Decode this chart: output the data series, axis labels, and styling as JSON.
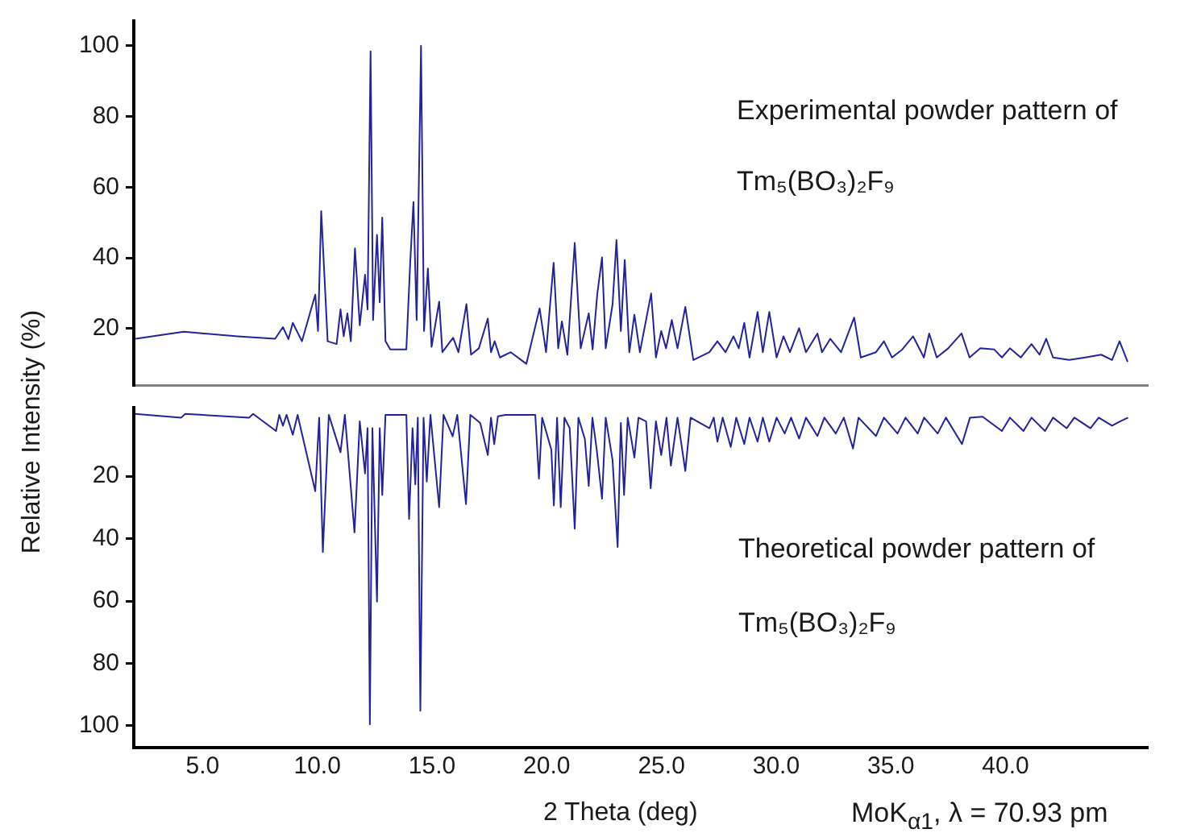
{
  "chart_data": [
    {
      "type": "line",
      "ylabel": "Relative Intensity (%)",
      "annotations": [
        "Experimental powder pattern of",
        "Tm₅(BO₃)₂F₉"
      ],
      "x": [
        2.08,
        4.18,
        6.52,
        8.16,
        8.5,
        8.74,
        8.93,
        9.33,
        9.91,
        10.03,
        10.17,
        10.45,
        10.84,
        11.01,
        11.15,
        11.31,
        11.46,
        11.64,
        11.85,
        12.08,
        12.19,
        12.32,
        12.43,
        12.6,
        12.72,
        12.83,
        12.97,
        13.18,
        13.88,
        14.05,
        14.19,
        14.33,
        14.52,
        14.65,
        14.82,
        14.98,
        15.31,
        15.45,
        15.92,
        16.15,
        16.5,
        16.7,
        17.04,
        17.43,
        17.57,
        17.73,
        17.96,
        18.43,
        19.11,
        19.69,
        19.97,
        20.3,
        20.5,
        20.66,
        20.9,
        21.22,
        21.48,
        21.83,
        22.0,
        22.2,
        22.41,
        22.57,
        22.87,
        23.04,
        23.23,
        23.4,
        23.6,
        23.82,
        24.06,
        24.55,
        24.76,
        24.99,
        25.2,
        25.45,
        25.7,
        26.04,
        26.39,
        27.09,
        27.44,
        27.79,
        28.14,
        28.37,
        28.61,
        28.84,
        29.19,
        29.42,
        29.7,
        30.02,
        30.32,
        30.6,
        31.0,
        31.3,
        31.8,
        32.0,
        32.36,
        32.83,
        33.4,
        33.69,
        34.35,
        34.7,
        35.05,
        35.5,
        35.97,
        36.44,
        36.67,
        37.0,
        37.5,
        38.08,
        38.43,
        38.9,
        39.5,
        39.84,
        40.19,
        40.66,
        41.13,
        41.48,
        41.77,
        42.07,
        42.77,
        43.47,
        44.17,
        44.64,
        44.97,
        45.32
      ],
      "series": [
        {
          "color": "#23239a",
          "values": [
            17.1,
            19.1,
            17.8,
            17.1,
            20.4,
            17.0,
            21.6,
            16.4,
            29.6,
            19.3,
            53.2,
            16.4,
            15.6,
            25.4,
            17.8,
            24.3,
            16.4,
            42.7,
            20.9,
            35.2,
            25.4,
            98.4,
            22.4,
            46.5,
            27.4,
            51.4,
            16.4,
            14.1,
            14.1,
            38.9,
            55.8,
            22.4,
            100,
            19.3,
            37.0,
            14.8,
            27.6,
            13.3,
            17.4,
            13.3,
            26.9,
            12.6,
            14.4,
            22.8,
            13.3,
            16.4,
            11.8,
            13.3,
            10.0,
            25.7,
            13.3,
            38.6,
            14.4,
            22.0,
            12.6,
            44.2,
            14.4,
            24.3,
            14.1,
            29.6,
            40.1,
            14.4,
            26.9,
            45.0,
            19.3,
            39.4,
            13.3,
            23.9,
            13.3,
            29.9,
            11.8,
            19.3,
            14.4,
            22.4,
            14.4,
            26.1,
            11.1,
            13.3,
            16.4,
            13.3,
            17.8,
            14.4,
            21.6,
            11.8,
            24.7,
            13.3,
            24.7,
            11.8,
            17.8,
            13.3,
            20.1,
            13.3,
            18.6,
            13.3,
            17.1,
            13.3,
            23.1,
            11.8,
            13.3,
            16.4,
            11.8,
            14.1,
            17.8,
            11.8,
            18.6,
            11.8,
            14.4,
            18.6,
            11.8,
            14.4,
            14.1,
            11.8,
            14.4,
            11.8,
            15.6,
            12.6,
            17.1,
            11.8,
            11.1,
            11.8,
            12.6,
            11.1,
            16.4,
            10.6
          ]
        }
      ],
      "xlim": [
        2,
        46.2
      ],
      "ylim": [
        4,
        107
      ],
      "yticks": [
        20,
        40,
        60,
        80,
        100
      ],
      "tick_labels": "y",
      "grid": false,
      "legend": false,
      "marker": "none",
      "line_style": "solid"
    },
    {
      "type": "line",
      "xlabel": "2 Theta (deg)",
      "annotations": [
        "Theoretical powder pattern of",
        "Tm₅(BO₃)₂F₉",
        "MoK$_{α1}$, λ = 70.93 pm"
      ],
      "x": [
        2.05,
        4.07,
        4.24,
        7.03,
        7.2,
        8.2,
        8.34,
        8.5,
        8.66,
        8.93,
        9.14,
        9.91,
        10.08,
        10.24,
        10.5,
        11.01,
        11.2,
        11.62,
        11.85,
        12.08,
        12.19,
        12.29,
        12.4,
        12.6,
        12.72,
        12.83,
        12.97,
        13.88,
        14.0,
        14.15,
        14.27,
        14.38,
        14.49,
        14.63,
        14.77,
        14.93,
        15.31,
        15.5,
        15.9,
        16.1,
        16.48,
        16.67,
        17.1,
        17.43,
        17.57,
        17.71,
        17.87,
        18.2,
        19.5,
        19.66,
        19.8,
        20.2,
        20.31,
        20.45,
        20.61,
        20.77,
        21.0,
        21.22,
        21.38,
        21.66,
        21.83,
        21.99,
        22.18,
        22.41,
        22.57,
        22.87,
        23.09,
        23.23,
        23.37,
        23.53,
        23.82,
        24.0,
        24.33,
        24.53,
        24.76,
        24.99,
        25.22,
        25.41,
        25.7,
        26.04,
        26.27,
        27.09,
        27.28,
        27.44,
        27.67,
        28.02,
        28.26,
        28.61,
        28.84,
        29.19,
        29.42,
        29.7,
        30.02,
        30.37,
        30.65,
        31.0,
        31.3,
        31.8,
        32.1,
        32.6,
        32.95,
        33.35,
        33.59,
        34.35,
        34.7,
        35.29,
        35.64,
        36.17,
        36.45,
        37.04,
        37.4,
        38.1,
        38.45,
        39.0,
        39.84,
        40.19,
        40.78,
        41.13,
        41.72,
        42.07,
        42.66,
        43.0,
        43.7,
        44.06,
        44.64,
        44.99,
        45.34
      ],
      "series": [
        {
          "color": "#23239a",
          "values": [
            0,
            1.2,
            0,
            1.2,
            0,
            5.5,
            0.3,
            3.8,
            0.3,
            6.7,
            0.3,
            24.8,
            1.2,
            44.3,
            0.3,
            12.3,
            0.3,
            38.0,
            2.4,
            19.1,
            4.6,
            99.5,
            4.6,
            60.2,
            4.6,
            26.0,
            0.3,
            0.3,
            33.7,
            4.6,
            22.6,
            1.2,
            95.2,
            1.2,
            21.7,
            0.3,
            29.9,
            0.3,
            7.2,
            0.3,
            28.9,
            0.3,
            2.9,
            13.2,
            1.2,
            9.7,
            0.8,
            0.3,
            0.3,
            20.8,
            1.2,
            11.5,
            29.4,
            1.2,
            29.9,
            1.2,
            4.6,
            36.8,
            1.2,
            8.0,
            23.1,
            1.2,
            11.5,
            27.2,
            1.2,
            14.9,
            42.7,
            2.9,
            26.0,
            1.2,
            14.0,
            1.2,
            2.4,
            23.9,
            2.4,
            13.2,
            1.2,
            16.6,
            1.2,
            18.3,
            1.2,
            4.6,
            1.2,
            8.9,
            1.2,
            10.6,
            1.2,
            9.7,
            1.2,
            8.9,
            1.2,
            8.9,
            1.2,
            6.3,
            1.2,
            7.9,
            1.2,
            7.1,
            1.2,
            6.3,
            1.2,
            11.1,
            1.2,
            7.1,
            1.2,
            6.3,
            1.2,
            6.3,
            1.2,
            6.3,
            1.2,
            9.7,
            1.2,
            0.9,
            5.5,
            1.2,
            5.5,
            1.2,
            5.5,
            1.2,
            4.6,
            1.2,
            4.6,
            1.2,
            3.8,
            2.4,
            1.2
          ]
        }
      ],
      "xlim": [
        2,
        46.2
      ],
      "xticks": [
        {
          "value": 5,
          "label": "5.0"
        },
        {
          "value": 10,
          "label": "10.0"
        },
        {
          "value": 15,
          "label": "15.0"
        },
        {
          "value": 20,
          "label": "20.0"
        },
        {
          "value": 25,
          "label": "25.0"
        },
        {
          "value": 30,
          "label": "30.0"
        },
        {
          "value": 35,
          "label": "35.0"
        },
        {
          "value": 40,
          "label": "40.0"
        }
      ],
      "ylim": [
        107,
        -2
      ],
      "yticks": [
        20,
        40,
        60,
        80,
        100
      ],
      "grid": false,
      "legend": false,
      "marker": "none",
      "line_style": "solid"
    }
  ]
}
